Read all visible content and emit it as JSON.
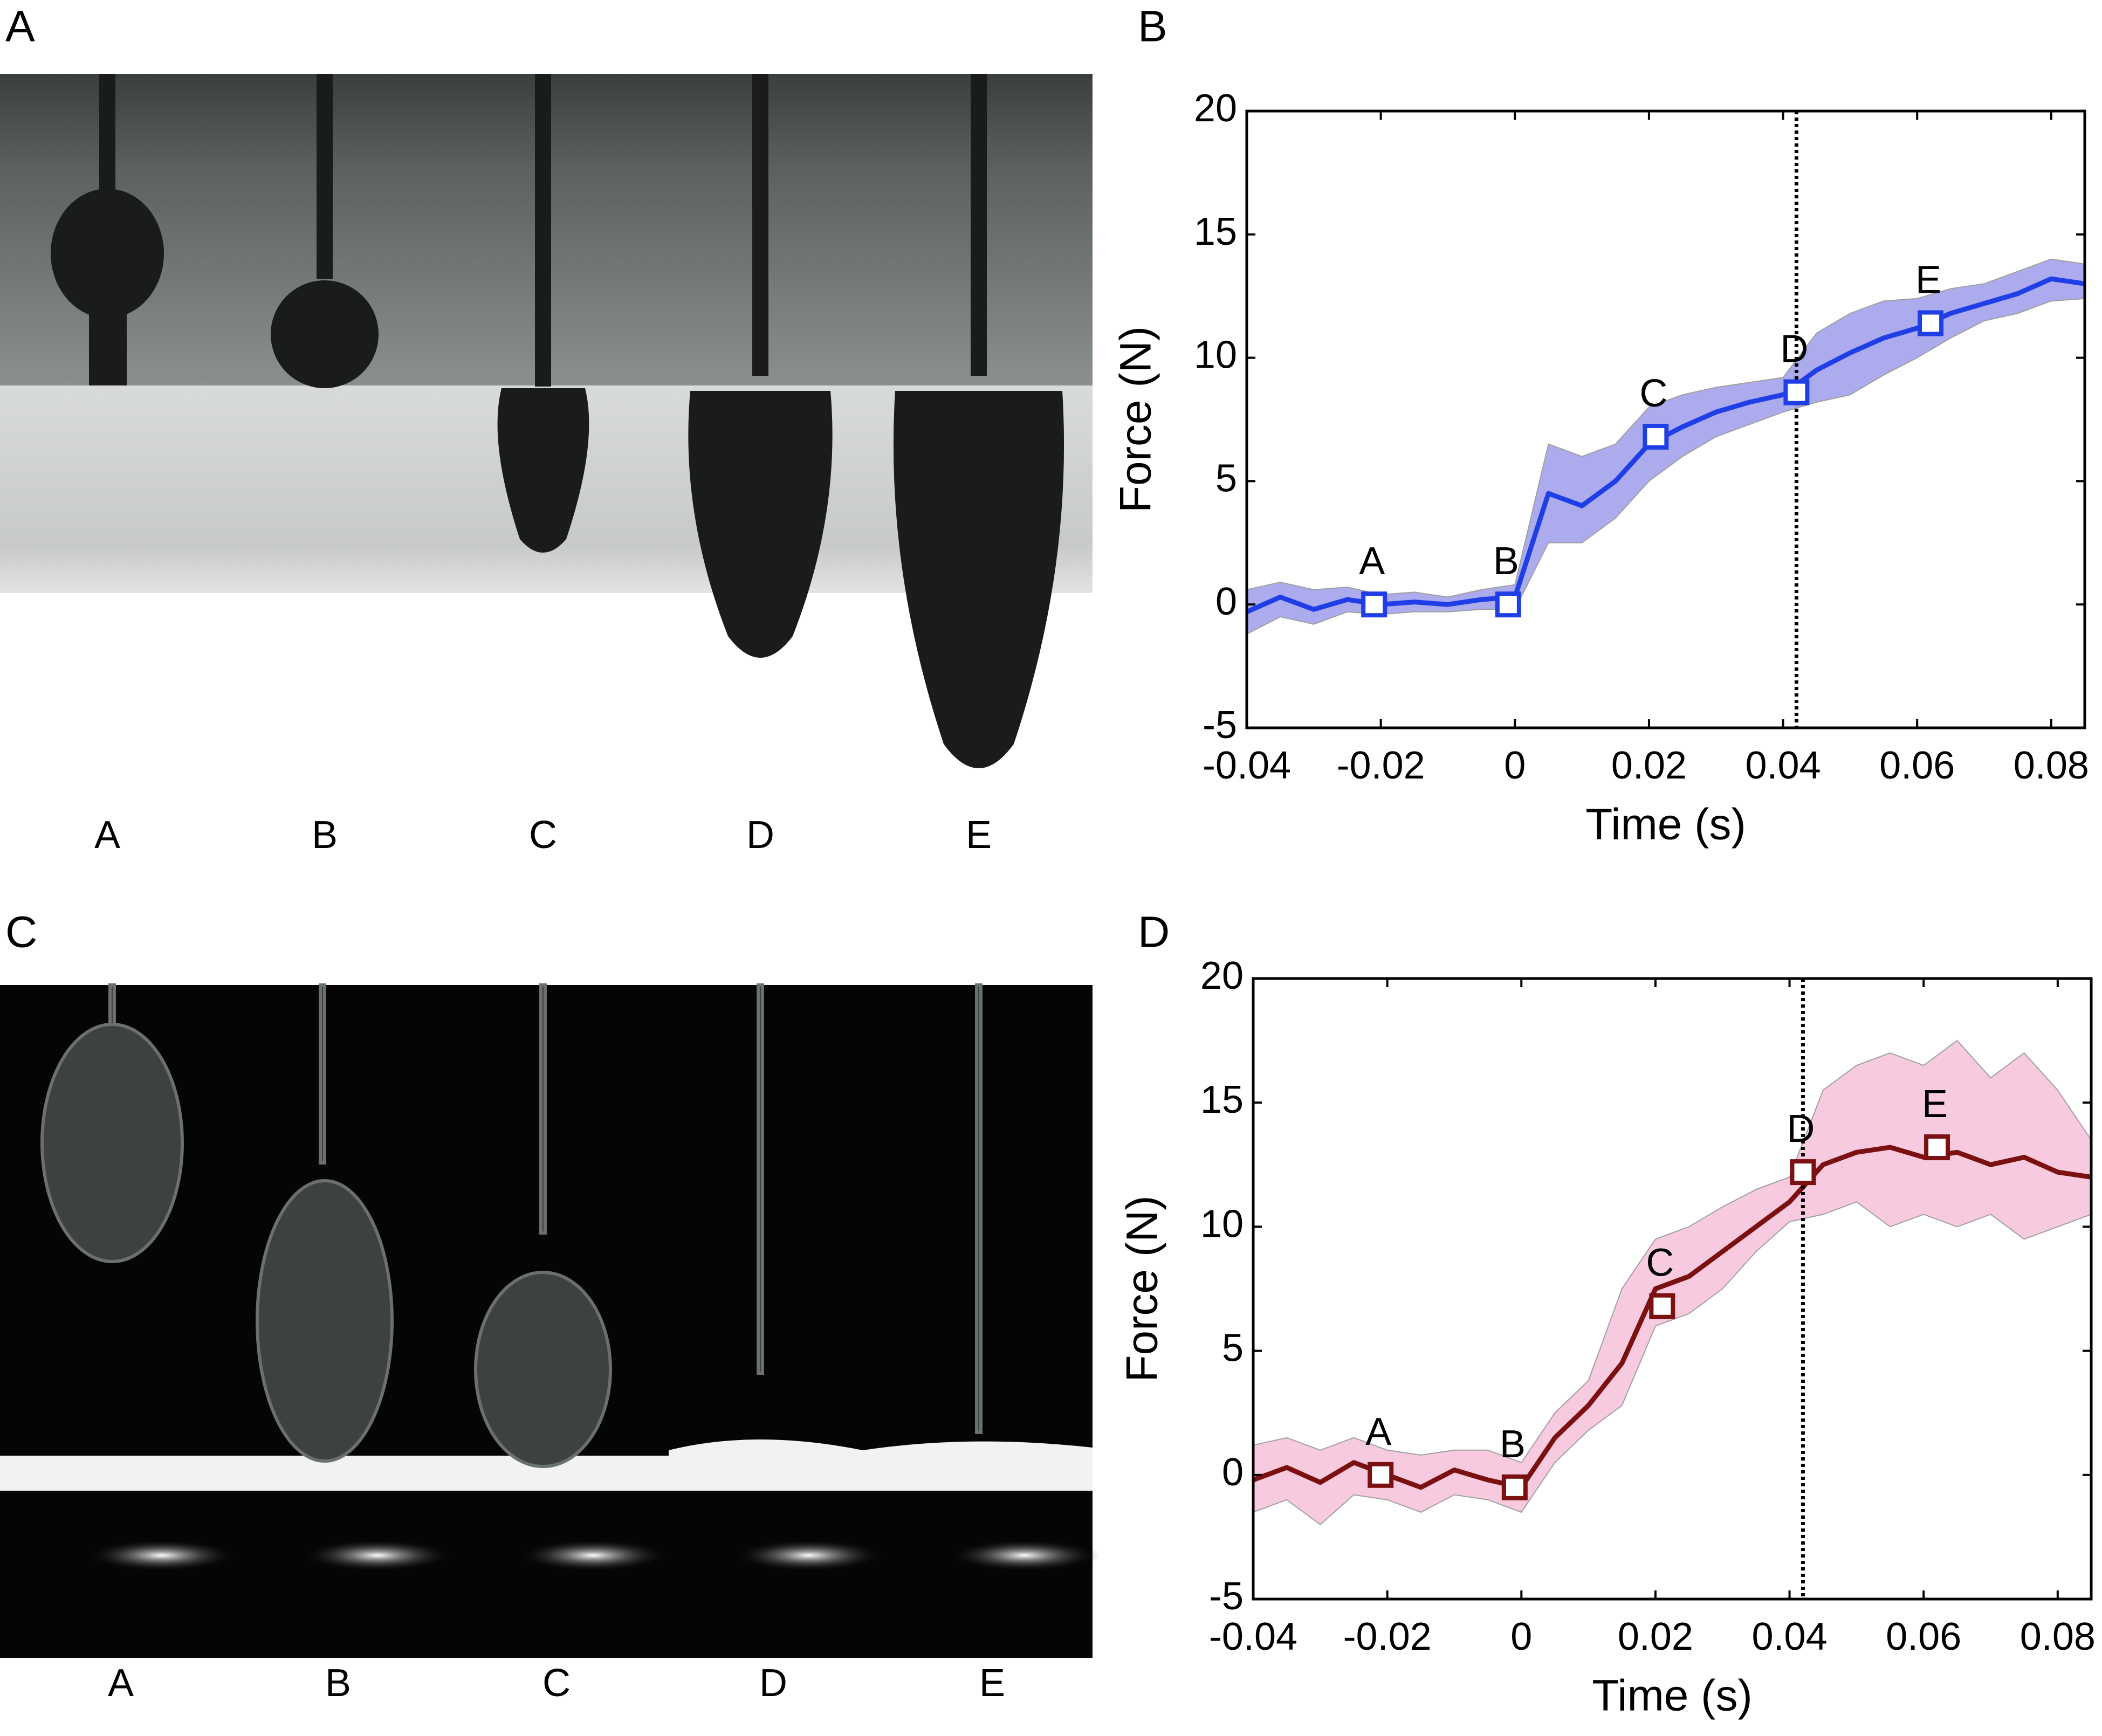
{
  "panels": [
    "A",
    "B",
    "C",
    "D"
  ],
  "photo_a_labels": [
    "A",
    "B",
    "C",
    "D",
    "E"
  ],
  "photo_c_labels": [
    "A",
    "B",
    "C",
    "D",
    "E"
  ],
  "chart_data": [
    {
      "type": "line",
      "xlabel": "Time (s)",
      "ylabel": "Force (N)",
      "x": [
        -0.04,
        -0.035,
        -0.03,
        -0.025,
        -0.02,
        -0.015,
        -0.01,
        -0.005,
        0,
        0.005,
        0.01,
        0.015,
        0.02,
        0.025,
        0.03,
        0.035,
        0.04,
        0.045,
        0.05,
        0.055,
        0.06,
        0.065,
        0.07,
        0.075,
        0.08,
        0.085
      ],
      "series": [
        {
          "color": "#1f3ee6",
          "values": [
            -0.3,
            0.3,
            -0.2,
            0.2,
            0,
            0.1,
            0,
            0.2,
            0.3,
            4.5,
            4.0,
            5.0,
            6.5,
            7.2,
            7.8,
            8.2,
            8.5,
            9.5,
            10.2,
            10.8,
            11.2,
            11.8,
            12.2,
            12.6,
            13.2,
            13.0
          ]
        }
      ],
      "band": {
        "color": "#8f8fe8",
        "lower": [
          -1.2,
          -0.5,
          -0.8,
          -0.3,
          -0.4,
          -0.3,
          -0.3,
          -0.2,
          -0.2,
          2.5,
          2.5,
          3.5,
          5.0,
          6.0,
          6.8,
          7.3,
          7.8,
          8.2,
          8.5,
          9.3,
          10.0,
          10.8,
          11.5,
          11.8,
          12.3,
          12.4
        ],
        "upper": [
          0.6,
          0.9,
          0.6,
          0.7,
          0.4,
          0.5,
          0.3,
          0.6,
          0.8,
          6.5,
          6.0,
          6.5,
          8.0,
          8.5,
          8.8,
          9.0,
          9.2,
          11.0,
          11.8,
          12.3,
          12.4,
          12.8,
          13.0,
          13.5,
          14.0,
          13.8
        ]
      },
      "markers": {
        "labels": [
          "A",
          "B",
          "C",
          "D",
          "E"
        ],
        "x": [
          -0.021,
          -0.001,
          0.021,
          0.042,
          0.062
        ],
        "y": [
          0,
          0,
          6.8,
          8.6,
          11.4
        ]
      },
      "vline": 0.042,
      "xlim": [
        -0.04,
        0.085
      ],
      "xticks": [
        -0.04,
        -0.02,
        0,
        0.02,
        0.04,
        0.06,
        0.08
      ],
      "ylim": [
        -5,
        20
      ],
      "yticks": [
        -5,
        0,
        5,
        10,
        15,
        20
      ]
    },
    {
      "type": "line",
      "xlabel": "Time (s)",
      "ylabel": "Force (N)",
      "x": [
        -0.04,
        -0.035,
        -0.03,
        -0.025,
        -0.02,
        -0.015,
        -0.01,
        -0.005,
        0,
        0.005,
        0.01,
        0.015,
        0.02,
        0.025,
        0.03,
        0.035,
        0.04,
        0.045,
        0.05,
        0.055,
        0.06,
        0.065,
        0.07,
        0.075,
        0.08,
        0.085
      ],
      "series": [
        {
          "color": "#7a1010",
          "values": [
            -0.2,
            0.3,
            -0.3,
            0.5,
            0,
            -0.5,
            0.2,
            -0.2,
            -0.5,
            1.5,
            2.8,
            4.5,
            7.5,
            8.0,
            9.0,
            10.0,
            11.0,
            12.5,
            13.0,
            13.2,
            12.8,
            13.0,
            12.5,
            12.8,
            12.2,
            12.0
          ]
        }
      ],
      "band": {
        "color": "#f6b8d6",
        "lower": [
          -1.5,
          -1.0,
          -2.0,
          -0.8,
          -1.0,
          -1.5,
          -0.8,
          -1.0,
          -1.5,
          0.5,
          1.8,
          2.8,
          6.0,
          6.5,
          7.5,
          9.0,
          10.2,
          10.5,
          11.0,
          10.0,
          10.5,
          10.0,
          10.5,
          9.5,
          10.0,
          10.5
        ],
        "upper": [
          1.2,
          1.5,
          1.0,
          1.5,
          1.0,
          0.8,
          1.0,
          1.0,
          0.5,
          2.5,
          3.8,
          7.5,
          9.5,
          10.0,
          10.8,
          11.5,
          12.0,
          15.5,
          16.5,
          17.0,
          16.5,
          17.5,
          16.0,
          17.0,
          15.5,
          13.5
        ]
      },
      "markers": {
        "labels": [
          "A",
          "B",
          "C",
          "D",
          "E"
        ],
        "x": [
          -0.021,
          -0.001,
          0.021,
          0.042,
          0.062
        ],
        "y": [
          0,
          -0.5,
          6.8,
          12.2,
          13.2
        ]
      },
      "vline": 0.042,
      "xlim": [
        -0.04,
        0.085
      ],
      "xticks": [
        -0.04,
        -0.02,
        0,
        0.02,
        0.04,
        0.06,
        0.08
      ],
      "ylim": [
        -5,
        20
      ],
      "yticks": [
        -5,
        0,
        5,
        10,
        15,
        20
      ]
    }
  ]
}
